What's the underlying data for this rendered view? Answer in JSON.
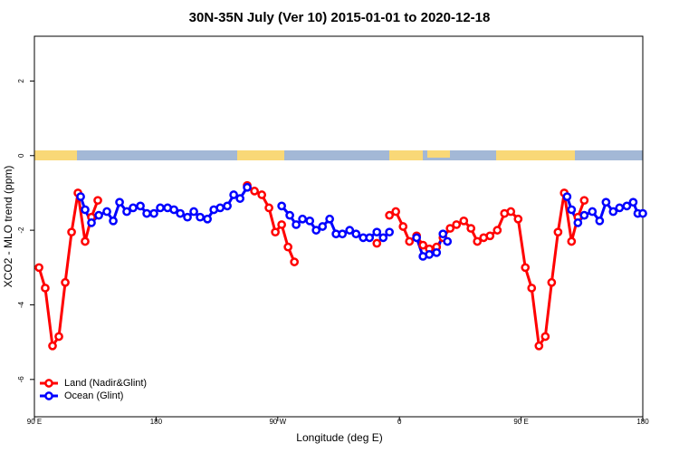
{
  "chart_data": {
    "type": "line",
    "title": "30N-35N July (Ver 10)   2015-01-01 to 2020-12-18",
    "x_label": "Longitude (deg E)",
    "y_label": "XCO2 - MLO trend (ppm)",
    "xlim": [
      90,
      540
    ],
    "xticks": [
      {
        "value": 90,
        "label": "90 E"
      },
      180,
      {
        "value": 270,
        "label": "90 W"
      },
      {
        "value": 360,
        "label": "0"
      },
      {
        "value": 450,
        "label": "90 E"
      },
      {
        "value": 540,
        "label": "180"
      }
    ],
    "ylim": [
      -7,
      3.2
    ],
    "yticks": [
      -6,
      -4,
      -2,
      0,
      2
    ],
    "legend": "bottom-left",
    "series": [
      {
        "name": "Land (Nadir&Glint)",
        "color": "#ff0000",
        "x": [
          93.4,
          98,
          103.4,
          108.1,
          112.8,
          117.5,
          122.2,
          127.5,
          132.2,
          136.9,
          null,
          247.4,
          252.8,
          258.2,
          263.5,
          268.2,
          272.9,
          277.6,
          282.3,
          null,
          343.3,
          null,
          352.6,
          357.3,
          362.7,
          367.4,
          372.7,
          377.4,
          382.1,
          387.5,
          392.2,
          397.5,
          402.2,
          407.6,
          412.9,
          417.6,
          422.3,
          427,
          432.4,
          437.7,
          442.4,
          447.8,
          453.1,
          457.8,
          463.2,
          467.9,
          472.6,
          477.3,
          481.9,
          487.3,
          492,
          496.7
        ],
        "values": [
          -3.0,
          -3.55,
          -5.1,
          -4.85,
          -3.4,
          -2.05,
          -1.0,
          -2.3,
          -1.65,
          -1.2,
          null,
          -0.8,
          -0.95,
          -1.05,
          -1.4,
          -2.05,
          -1.85,
          -2.45,
          -2.85,
          null,
          -2.35,
          null,
          -1.6,
          -1.5,
          -1.9,
          -2.3,
          -2.15,
          -2.4,
          -2.5,
          -2.45,
          -2.2,
          -1.95,
          -1.85,
          -1.75,
          -1.95,
          -2.3,
          -2.2,
          -2.15,
          -2.0,
          -1.55,
          -1.5,
          -1.7,
          -3.0,
          -3.55,
          -5.1,
          -4.85,
          -3.4,
          -2.05,
          -1.0,
          -2.3,
          -1.65,
          -1.2
        ]
      },
      {
        "name": "Ocean (Glint)",
        "color": "#0000ff",
        "x": [
          124.2,
          127.5,
          132.2,
          137.6,
          143.6,
          148.3,
          153,
          158.3,
          163,
          168.4,
          173.1,
          178.4,
          183.1,
          188.5,
          193.2,
          197.9,
          203.2,
          207.9,
          212.6,
          218,
          222.7,
          227.4,
          232.7,
          237.4,
          242.1,
          247.4,
          null,
          272.9,
          278.9,
          283.6,
          288.3,
          293.7,
          298.4,
          303.1,
          308.4,
          313.1,
          317.8,
          323.2,
          327.9,
          333.2,
          337.9,
          343.3,
          348,
          352.6,
          null,
          372.7,
          377.4,
          382.1,
          387.5,
          392.2,
          395.5,
          null,
          484,
          487.3,
          492,
          496.7,
          502.7,
          508.1,
          512.8,
          518.1,
          522.8,
          528.2,
          532.9,
          536.3,
          540
        ],
        "values": [
          -1.1,
          -1.45,
          -1.8,
          -1.6,
          -1.5,
          -1.75,
          -1.25,
          -1.5,
          -1.4,
          -1.35,
          -1.55,
          -1.55,
          -1.4,
          -1.4,
          -1.45,
          -1.55,
          -1.65,
          -1.5,
          -1.65,
          -1.7,
          -1.45,
          -1.4,
          -1.35,
          -1.05,
          -1.15,
          -0.85,
          null,
          -1.35,
          -1.6,
          -1.85,
          -1.7,
          -1.75,
          -2.0,
          -1.9,
          -1.7,
          -2.1,
          -2.1,
          -2.0,
          -2.1,
          -2.2,
          -2.2,
          -2.05,
          -2.2,
          -2.05,
          null,
          -2.2,
          -2.7,
          -2.65,
          -2.6,
          -2.1,
          -2.3,
          null,
          -1.1,
          -1.45,
          -1.8,
          -1.6,
          -1.5,
          -1.75,
          -1.25,
          -1.5,
          -1.4,
          -1.35,
          -1.25,
          -1.55,
          -1.55
        ]
      }
    ]
  }
}
